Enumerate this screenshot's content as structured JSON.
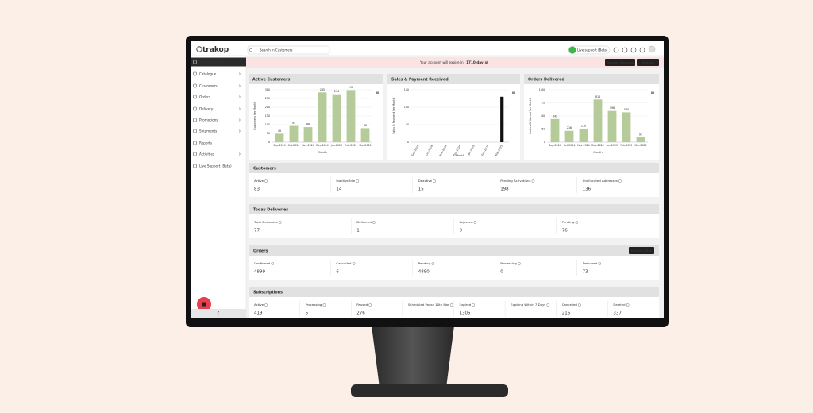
{
  "header": {
    "logo": "trakop",
    "search_placeholder": "Search in Customers",
    "live_support": "Live support (Beta)"
  },
  "sidebar": {
    "items": [
      {
        "label": "Dashboard",
        "active": true
      },
      {
        "label": "Catalogue",
        "has_submenu": true
      },
      {
        "label": "Customers",
        "has_submenu": true
      },
      {
        "label": "Orders",
        "has_submenu": true
      },
      {
        "label": "Delivery",
        "has_submenu": true
      },
      {
        "label": "Promotions",
        "has_submenu": true
      },
      {
        "label": "Shipments",
        "has_submenu": true
      },
      {
        "label": "Reports"
      },
      {
        "label": "Activities",
        "has_submenu": true
      },
      {
        "label": "Live Support (Beta)"
      }
    ]
  },
  "notice": {
    "text": "Your account will expire in:",
    "days": "1710 day(s)"
  },
  "buttons": [
    "Manage Widgets",
    "Refresh"
  ],
  "chart_data": [
    {
      "type": "bar",
      "title": "Active Customers",
      "y_label": "Customers Per Month",
      "x_label": "Month",
      "categories": [
        "Sep-2024",
        "Oct-2024",
        "Nov-2024",
        "Dec-2024",
        "Jan-2025",
        "Feb-2025",
        "Mar-2025"
      ],
      "values": [
        48,
        93,
        86,
        285,
        274,
        298,
        80
      ],
      "color": "#b6cb9a",
      "ylim": [
        0,
        300
      ],
      "yticks": [
        0,
        50,
        100,
        150,
        200,
        250,
        300
      ],
      "grid": true,
      "data_labels": true
    },
    {
      "type": "bar",
      "title": "Sales & Payment Received",
      "y_label": "Sales & Payment Per Month",
      "x_label": "Month",
      "categories": [
        "Sep-2024",
        "Oct-2024",
        "Nov-2024",
        "Dec-2024",
        "Jan-2025",
        "Feb-2025",
        "Mar-2025"
      ],
      "values": [
        null,
        null,
        null,
        null,
        null,
        null,
        130
      ],
      "color": "#111111",
      "ylim": [
        0,
        150
      ],
      "yticks": [
        0,
        50,
        100,
        150
      ],
      "grid": true,
      "data_labels": false
    },
    {
      "type": "bar",
      "title": "Orders Delivered",
      "y_label": "Orders Delivered Per Month",
      "x_label": "Month",
      "categories": [
        "Sep-2024",
        "Oct-2024",
        "Nov-2024",
        "Dec-2024",
        "Jan-2025",
        "Feb-2025",
        "Mar-2025"
      ],
      "values": [
        442,
        216,
        258,
        814,
        596,
        570,
        91
      ],
      "color": "#b6cb9a",
      "ylim": [
        0,
        1000
      ],
      "yticks": [
        0,
        250,
        500,
        750,
        1000
      ],
      "grid": true,
      "data_labels": true
    }
  ],
  "sections": [
    {
      "title": "Customers",
      "color": "#2f7fc8",
      "items": [
        {
          "label": "Active",
          "value": 83
        },
        {
          "label": "Inactive/Idle",
          "value": 14
        },
        {
          "label": "Deactive",
          "value": 15
        },
        {
          "label": "Pending Activations",
          "value": 198
        },
        {
          "label": "Unallocated Addresses",
          "value": 136
        }
      ]
    },
    {
      "title": "Today Deliveries",
      "color": "#2e9b4f",
      "items": [
        {
          "label": "Total Deliveries",
          "value": 77
        },
        {
          "label": "Delivered",
          "value": 1
        },
        {
          "label": "Rejected",
          "value": 0
        },
        {
          "label": "Pending",
          "value": 76
        }
      ]
    },
    {
      "title": "Orders",
      "color": "#8cc24a",
      "button": "Delivery Map",
      "items": [
        {
          "label": "Confirmed",
          "value": 4899
        },
        {
          "label": "Cancelled",
          "value": 6
        },
        {
          "label": "Pending",
          "value": 4880
        },
        {
          "label": "Processing",
          "value": 0
        },
        {
          "label": "Delivered",
          "value": 73
        }
      ]
    },
    {
      "title": "Subscriptions",
      "color": "#e8902a",
      "items": [
        {
          "label": "Active",
          "value": 419
        },
        {
          "label": "Processing",
          "value": 5
        },
        {
          "label": "Paused",
          "value": 276
        },
        {
          "label": "Scheduled Pause 10th Mar"
        },
        {
          "label": "Expired",
          "value": 1305
        },
        {
          "label": "Expiring Within 7 Days"
        },
        {
          "label": "Cancelled",
          "value": 216
        },
        {
          "label": "Deleted",
          "value": 337
        }
      ]
    }
  ]
}
